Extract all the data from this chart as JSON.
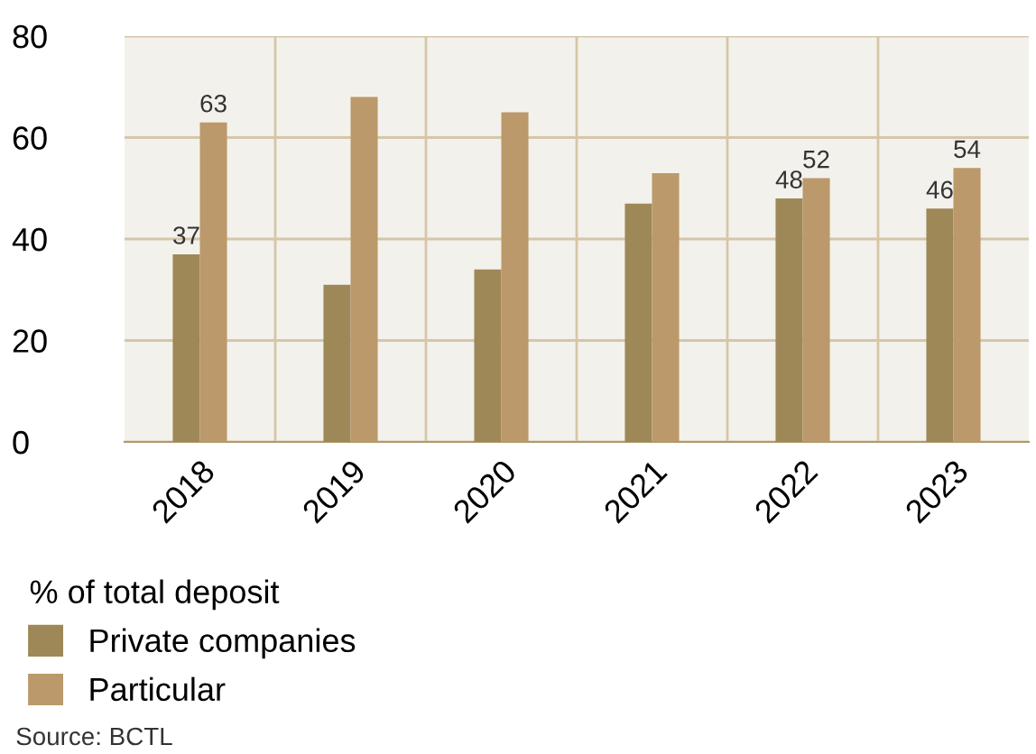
{
  "chart_data": {
    "type": "bar",
    "categories": [
      "2018",
      "2019",
      "2020",
      "2021",
      "2022",
      "2023"
    ],
    "series": [
      {
        "name": "Private companies",
        "color": "#9e8857",
        "values": [
          37,
          31,
          34,
          47,
          48,
          46
        ],
        "value_labels": [
          "37",
          null,
          null,
          null,
          "48",
          "46"
        ]
      },
      {
        "name": "Particular",
        "color": "#bb996a",
        "values": [
          63,
          68,
          65,
          53,
          52,
          54
        ],
        "value_labels": [
          "63",
          null,
          null,
          null,
          "52",
          "54"
        ]
      }
    ],
    "legend_title": "% of total deposit",
    "legend": "bottom",
    "ylim": [
      0,
      80
    ],
    "yticks": [
      0,
      20,
      40,
      60,
      80
    ],
    "grid": true,
    "annotations": [
      "Source: BCTL"
    ]
  }
}
